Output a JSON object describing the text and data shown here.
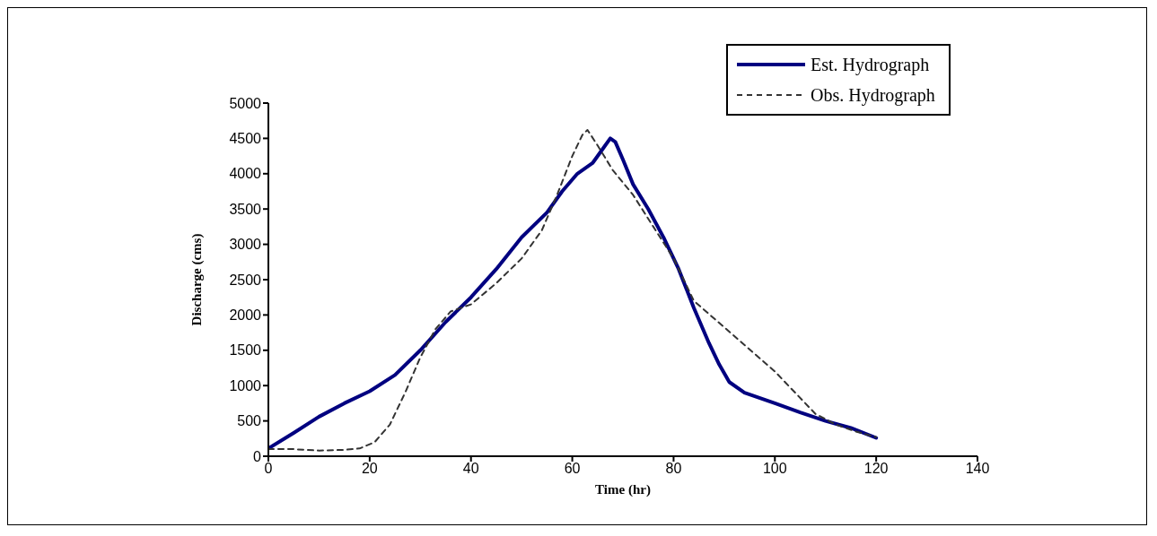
{
  "chart_data": {
    "type": "line",
    "xlabel": "Time (hr)",
    "ylabel": "Discharge (cms)",
    "xlim": [
      0,
      140
    ],
    "xticks": [
      0,
      20,
      40,
      60,
      80,
      100,
      120,
      140
    ],
    "ylim": [
      0,
      5000
    ],
    "yticks": [
      0,
      500,
      1000,
      1500,
      2000,
      2500,
      3000,
      3500,
      4000,
      4500,
      5000
    ],
    "grid": false,
    "legend": "top right",
    "marker": "none",
    "series": [
      {
        "name": "Est. Hydrograph",
        "color": "#000080",
        "line_style": "solid",
        "x": [
          0,
          5,
          10,
          15,
          20,
          25,
          30,
          35,
          40,
          45,
          50,
          55,
          58,
          61,
          64,
          66,
          67.5,
          68.5,
          70,
          72,
          75,
          78,
          81,
          84,
          87,
          89,
          91,
          94,
          100,
          105,
          110,
          115,
          120
        ],
        "values": [
          110,
          330,
          560,
          750,
          920,
          1150,
          1500,
          1900,
          2250,
          2650,
          3100,
          3450,
          3750,
          4000,
          4150,
          4350,
          4500,
          4450,
          4200,
          3850,
          3500,
          3100,
          2650,
          2100,
          1600,
          1300,
          1050,
          900,
          750,
          620,
          500,
          400,
          260
        ]
      },
      {
        "name": "Obs. Hydrograph",
        "color": "#333333",
        "line_style": "dashed",
        "x": [
          0,
          5,
          10,
          15,
          18,
          21,
          24,
          27,
          30,
          33,
          36,
          40,
          45,
          50,
          54,
          57,
          60,
          62,
          63,
          65,
          68,
          72,
          76,
          80,
          84,
          88,
          92,
          96,
          100,
          104,
          108,
          112,
          116,
          120
        ],
        "values": [
          100,
          100,
          80,
          90,
          110,
          200,
          450,
          900,
          1400,
          1800,
          2050,
          2150,
          2450,
          2800,
          3200,
          3700,
          4250,
          4550,
          4620,
          4400,
          4050,
          3700,
          3250,
          2800,
          2200,
          1950,
          1700,
          1450,
          1200,
          900,
          600,
          450,
          350,
          270
        ]
      }
    ]
  }
}
